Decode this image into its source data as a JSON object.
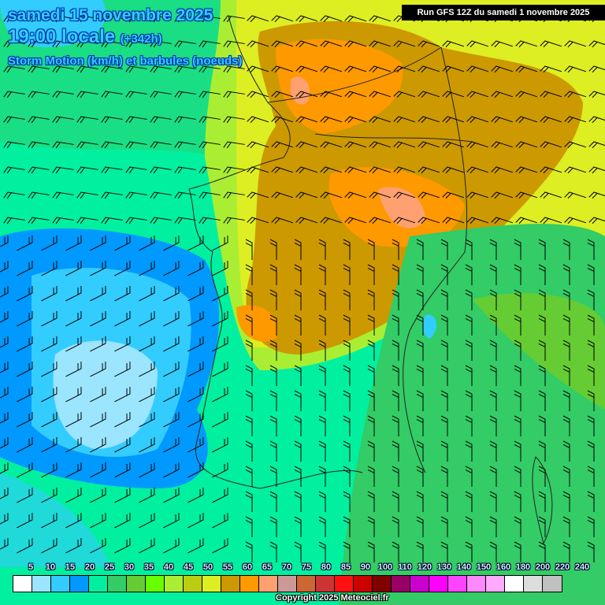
{
  "header": {
    "date": "samedi 15 novembre 2025",
    "time": "19:00 locale",
    "offset": "(+342h)",
    "parameter": "Storm Motion (km/h) et barbules (noeuds)",
    "run": "Run GFS 12Z du samedi 1 novembre 2025"
  },
  "legend": {
    "unit": "km/h",
    "labels": [
      "5",
      "10",
      "15",
      "20",
      "25",
      "30",
      "35",
      "40",
      "45",
      "50",
      "55",
      "60",
      "65",
      "70",
      "75",
      "80",
      "85",
      "90",
      "100",
      "110",
      "120",
      "130",
      "140",
      "150",
      "160",
      "180",
      "200",
      "220",
      "240"
    ],
    "colors": [
      "#ffffff",
      "#9be5ff",
      "#33ccff",
      "#0099ff",
      "#00f0a0",
      "#33cc66",
      "#66cc33",
      "#66ff00",
      "#aaee33",
      "#bbcc11",
      "#ddee22",
      "#cc9900",
      "#ff9900",
      "#ffa070",
      "#cc9999",
      "#cc6633",
      "#cc3333",
      "#ff1111",
      "#cc0000",
      "#800000",
      "#990066",
      "#cc00cc",
      "#ff00ff",
      "#ff44ff",
      "#ff88ff",
      "#ffaaff",
      "#ffffff",
      "#dddddd",
      "#c0c0c0"
    ]
  },
  "copyright": "Copyright 2025 Meteociel.fr"
}
